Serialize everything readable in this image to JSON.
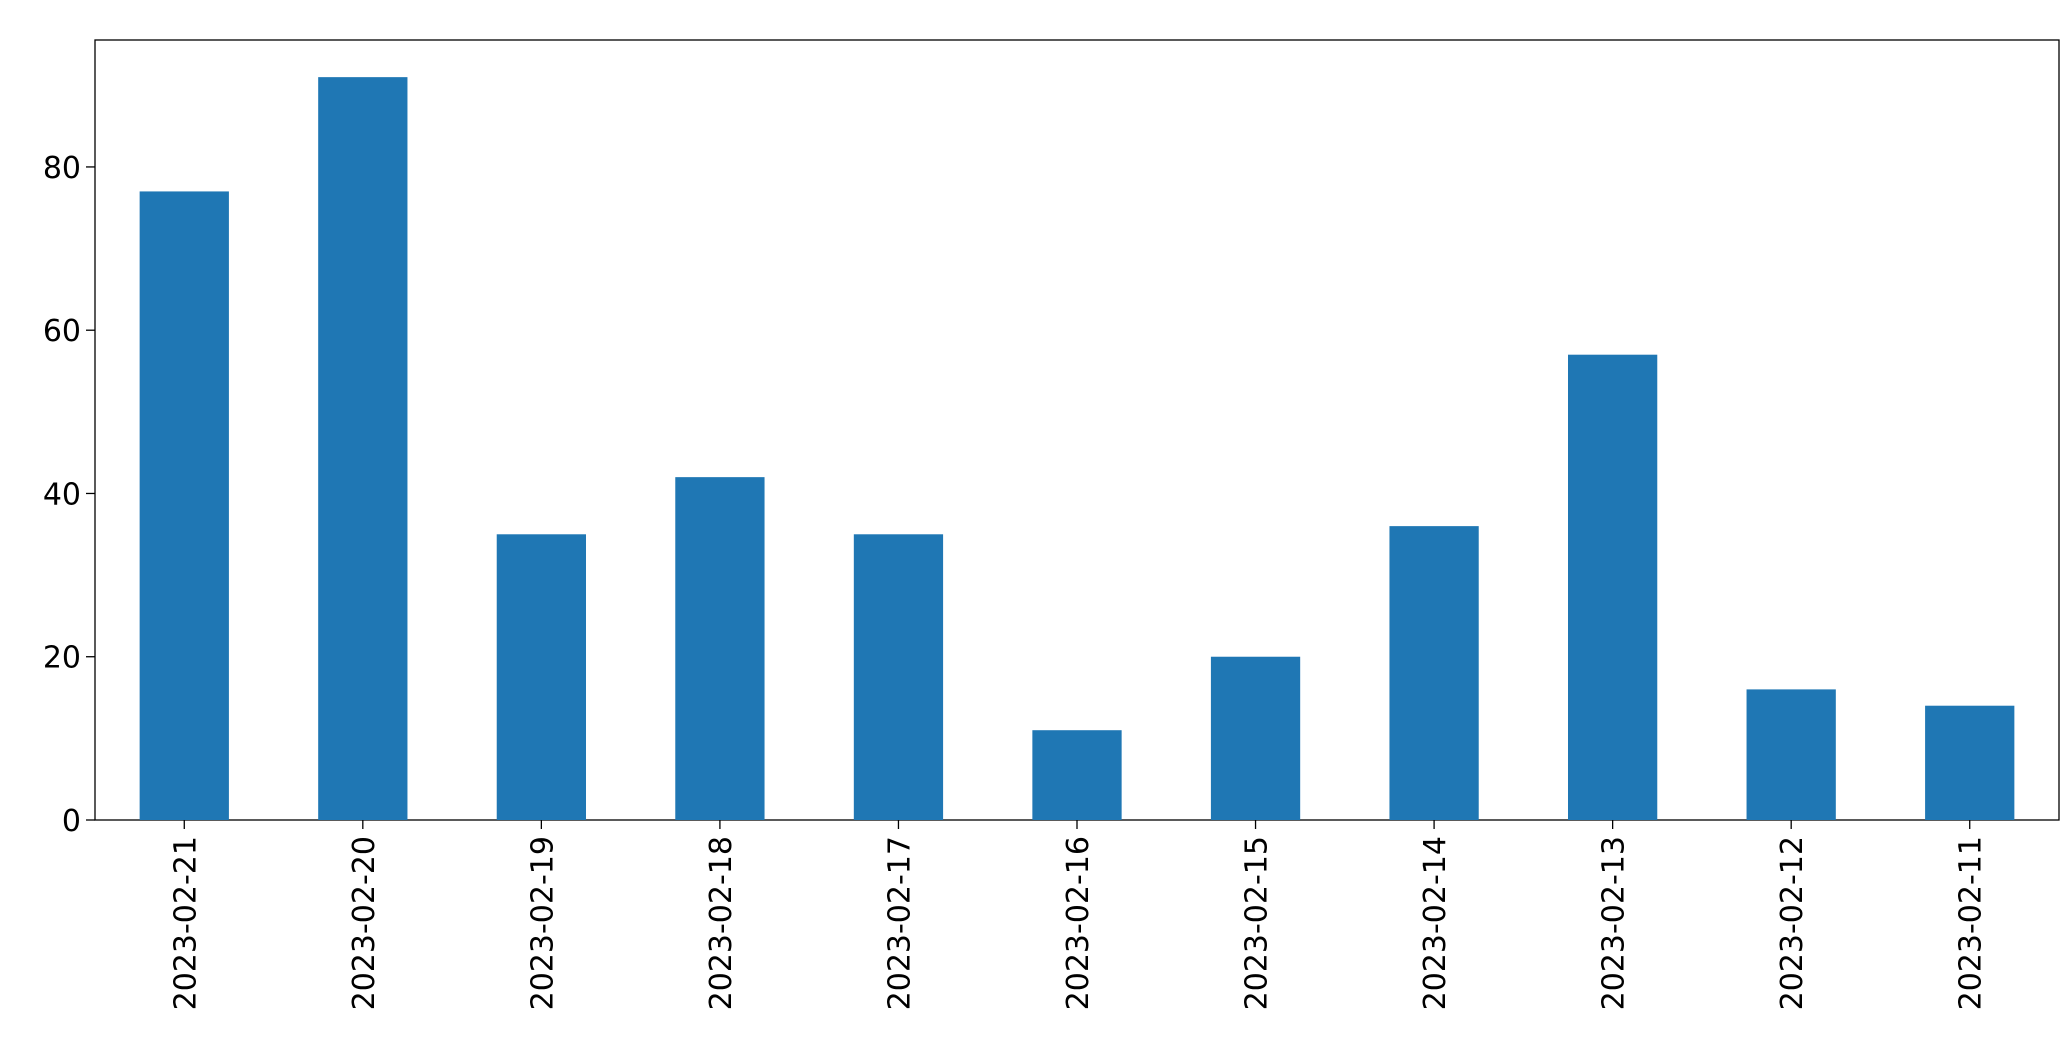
{
  "chart_data": {
    "type": "bar",
    "categories": [
      "2023-02-21",
      "2023-02-20",
      "2023-02-19",
      "2023-02-18",
      "2023-02-17",
      "2023-02-16",
      "2023-02-15",
      "2023-02-14",
      "2023-02-13",
      "2023-02-12",
      "2023-02-11"
    ],
    "values": [
      77,
      91,
      35,
      42,
      35,
      11,
      20,
      36,
      57,
      16,
      14
    ],
    "color": "#1f77b4",
    "ylim": [
      0,
      95.55
    ],
    "yticks": [
      0,
      20,
      40,
      60,
      80
    ],
    "grid": false
  }
}
